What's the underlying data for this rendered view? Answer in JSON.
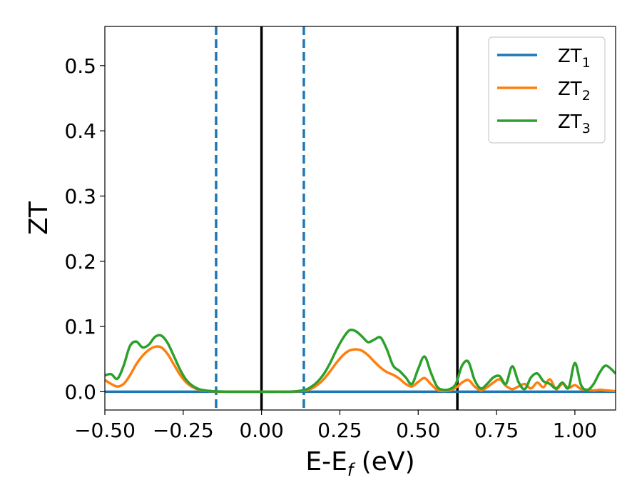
{
  "chart_data": {
    "type": "line",
    "xlabel": "E-E",
    "xlabel_sub": "f",
    "xlabel_unit": "(eV)",
    "ylabel": "ZT",
    "xlim": [
      -0.5,
      1.13
    ],
    "ylim": [
      -0.028,
      0.56
    ],
    "xticks": [
      -0.5,
      -0.25,
      0.0,
      0.25,
      0.5,
      0.75,
      1.0
    ],
    "xtick_labels": [
      "−0.50",
      "−0.25",
      "0.00",
      "0.25",
      "0.50",
      "0.75",
      "1.00"
    ],
    "yticks": [
      0.0,
      0.1,
      0.2,
      0.3,
      0.4,
      0.5
    ],
    "ytick_labels": [
      "0.0",
      "0.1",
      "0.2",
      "0.3",
      "0.4",
      "0.5"
    ],
    "grid": false,
    "legend_position": "top-right",
    "vlines": [
      {
        "x": -0.145,
        "style": "dashed",
        "color": "#1f77b4"
      },
      {
        "x": 0.0,
        "style": "solid",
        "color": "#000000"
      },
      {
        "x": 0.135,
        "style": "dashed",
        "color": "#1f77b4"
      },
      {
        "x": 0.625,
        "style": "solid",
        "color": "#000000"
      }
    ],
    "series": [
      {
        "name": "ZT",
        "sub": "1",
        "color": "#1f77b4",
        "x": [
          -0.5,
          1.13
        ],
        "y": [
          0.0,
          0.0
        ]
      },
      {
        "name": "ZT",
        "sub": "2",
        "color": "#ff7f0e",
        "x": [
          -0.5,
          -0.48,
          -0.46,
          -0.44,
          -0.42,
          -0.4,
          -0.38,
          -0.36,
          -0.34,
          -0.32,
          -0.3,
          -0.28,
          -0.26,
          -0.24,
          -0.22,
          -0.2,
          -0.18,
          -0.16,
          -0.14,
          -0.12,
          -0.1,
          -0.05,
          0.0,
          0.05,
          0.1,
          0.14,
          0.16,
          0.18,
          0.2,
          0.22,
          0.24,
          0.26,
          0.28,
          0.3,
          0.32,
          0.34,
          0.36,
          0.38,
          0.4,
          0.42,
          0.44,
          0.46,
          0.48,
          0.5,
          0.52,
          0.54,
          0.56,
          0.58,
          0.6,
          0.62,
          0.64,
          0.66,
          0.68,
          0.7,
          0.72,
          0.74,
          0.76,
          0.78,
          0.8,
          0.82,
          0.84,
          0.86,
          0.88,
          0.9,
          0.92,
          0.94,
          0.96,
          0.98,
          1.0,
          1.02,
          1.04,
          1.06,
          1.08,
          1.1,
          1.13
        ],
        "y": [
          0.018,
          0.012,
          0.008,
          0.012,
          0.025,
          0.042,
          0.055,
          0.064,
          0.069,
          0.068,
          0.058,
          0.042,
          0.026,
          0.014,
          0.007,
          0.003,
          0.0015,
          0.0008,
          0.0004,
          0.0002,
          0.0001,
          0.0,
          0.0,
          0.0,
          0.0002,
          0.002,
          0.005,
          0.011,
          0.02,
          0.032,
          0.045,
          0.056,
          0.063,
          0.065,
          0.063,
          0.056,
          0.046,
          0.037,
          0.03,
          0.026,
          0.02,
          0.012,
          0.008,
          0.015,
          0.021,
          0.012,
          0.003,
          0.001,
          0.002,
          0.006,
          0.014,
          0.018,
          0.008,
          0.002,
          0.007,
          0.014,
          0.019,
          0.009,
          0.004,
          0.008,
          0.012,
          0.005,
          0.014,
          0.007,
          0.019,
          0.004,
          0.012,
          0.006,
          0.01,
          0.004,
          0.003,
          0.002,
          0.003,
          0.002,
          0.001
        ]
      },
      {
        "name": "ZT",
        "sub": "3",
        "color": "#2ca02c",
        "x": [
          -0.5,
          -0.48,
          -0.46,
          -0.44,
          -0.42,
          -0.4,
          -0.38,
          -0.36,
          -0.34,
          -0.32,
          -0.3,
          -0.28,
          -0.26,
          -0.24,
          -0.22,
          -0.2,
          -0.18,
          -0.16,
          -0.14,
          -0.12,
          -0.1,
          -0.05,
          0.0,
          0.05,
          0.1,
          0.14,
          0.16,
          0.18,
          0.2,
          0.22,
          0.24,
          0.26,
          0.28,
          0.3,
          0.32,
          0.34,
          0.36,
          0.38,
          0.4,
          0.42,
          0.44,
          0.46,
          0.48,
          0.5,
          0.52,
          0.54,
          0.56,
          0.58,
          0.6,
          0.62,
          0.64,
          0.66,
          0.68,
          0.7,
          0.72,
          0.74,
          0.76,
          0.78,
          0.8,
          0.82,
          0.84,
          0.86,
          0.88,
          0.9,
          0.92,
          0.94,
          0.96,
          0.98,
          1.0,
          1.02,
          1.04,
          1.06,
          1.08,
          1.1,
          1.13
        ],
        "y": [
          0.025,
          0.027,
          0.02,
          0.04,
          0.07,
          0.077,
          0.068,
          0.072,
          0.084,
          0.086,
          0.075,
          0.055,
          0.034,
          0.018,
          0.009,
          0.004,
          0.002,
          0.001,
          0.0005,
          0.0002,
          0.0001,
          0.0,
          0.0,
          0.0,
          0.0003,
          0.003,
          0.008,
          0.016,
          0.028,
          0.045,
          0.065,
          0.082,
          0.094,
          0.093,
          0.085,
          0.076,
          0.08,
          0.083,
          0.065,
          0.04,
          0.032,
          0.022,
          0.012,
          0.035,
          0.054,
          0.03,
          0.008,
          0.003,
          0.004,
          0.012,
          0.04,
          0.046,
          0.018,
          0.005,
          0.012,
          0.022,
          0.024,
          0.012,
          0.039,
          0.015,
          0.004,
          0.022,
          0.028,
          0.016,
          0.012,
          0.005,
          0.014,
          0.006,
          0.044,
          0.01,
          0.003,
          0.012,
          0.03,
          0.04,
          0.028
        ]
      }
    ]
  }
}
